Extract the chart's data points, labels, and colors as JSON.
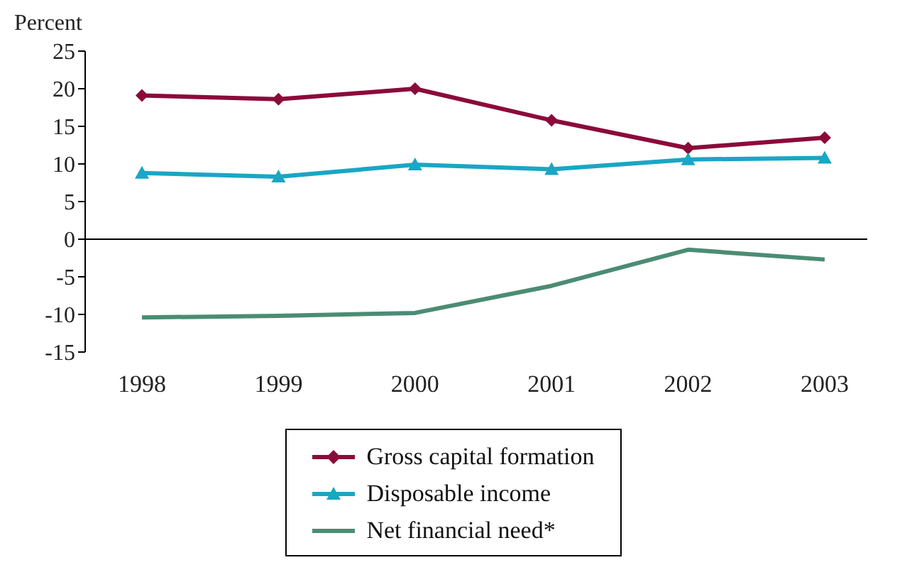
{
  "chart_data": {
    "type": "line",
    "ylabel": "Percent",
    "categories": [
      "1998",
      "1999",
      "2000",
      "2001",
      "2002",
      "2003"
    ],
    "series": [
      {
        "name": "Gross capital formation",
        "color": "#8b0a3a",
        "marker": "diamond",
        "values": [
          19.1,
          18.6,
          20.0,
          15.8,
          12.1,
          13.5
        ]
      },
      {
        "name": "Disposable income",
        "color": "#1aa6c4",
        "marker": "triangle",
        "values": [
          8.8,
          8.3,
          9.9,
          9.3,
          10.6,
          10.8
        ]
      },
      {
        "name": "Net financial need*",
        "color": "#4b8c74",
        "marker": "none",
        "values": [
          -10.4,
          -10.2,
          -9.8,
          -6.2,
          -1.4,
          -2.7
        ]
      }
    ],
    "ylim": [
      -15,
      25
    ],
    "yticks": [
      -15,
      -10,
      -5,
      0,
      5,
      10,
      15,
      20,
      25
    ],
    "ref_lines": [
      {
        "axis": "y",
        "value": 0,
        "color": "#000000"
      }
    ],
    "legend": "bottom"
  }
}
